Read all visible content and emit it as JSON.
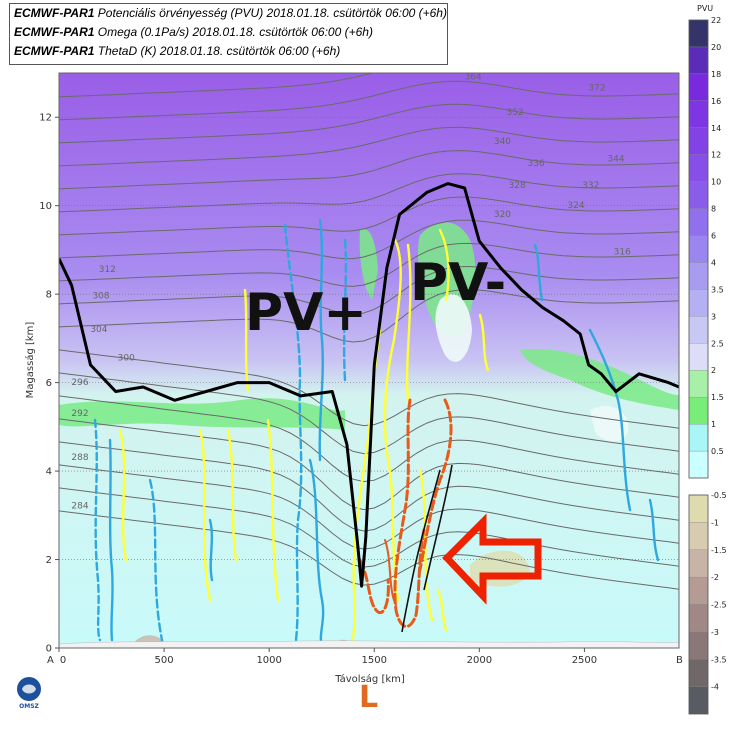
{
  "legend": [
    {
      "model": "ECMWF-PAR1",
      "rest": "Potenciális örvényesség (PVU) 2018.01.18. csütörtök 06:00 (+6h)"
    },
    {
      "model": "ECMWF-PAR1",
      "rest": "Omega (0.1Pa/s) 2018.01.18. csütörtök 06:00 (+6h)"
    },
    {
      "model": "ECMWF-PAR1",
      "rest": "ThetaD (K) 2018.01.18. csütörtök 06:00 (+6h)"
    }
  ],
  "chart_data": {
    "type": "cross-section",
    "xlabel": "Távolság [km]",
    "ylabel": "Magasság [km]",
    "xlim": [
      0,
      2950
    ],
    "ylim": [
      0,
      13
    ],
    "x_ticks": [
      0,
      500,
      1000,
      1500,
      2000,
      2500
    ],
    "y_ticks": [
      0,
      2,
      4,
      6,
      8,
      10,
      12
    ],
    "endpoint_labels": {
      "start": "A",
      "end": "B"
    },
    "grid": "horizontal dotted",
    "pv_colorbar": {
      "unit": "PVU",
      "levels": [
        0.5,
        1,
        1.5,
        2,
        2.5,
        3,
        3.5,
        4,
        6,
        8,
        10,
        12,
        14,
        16,
        18,
        20,
        22
      ],
      "colors": [
        "#ccffff",
        "#aaf5f5",
        "#78ee78",
        "#a8f0a8",
        "#ddddf8",
        "#c8c8f5",
        "#b5b0f2",
        "#a89cf0",
        "#9a86ee",
        "#9070ec",
        "#8a5cea",
        "#8650e8",
        "#8242e6",
        "#7e36e2",
        "#7a2ade",
        "#5a2cb8",
        "#34346a"
      ]
    },
    "omega_colorbar": {
      "levels": [
        -0.5,
        -1,
        -1.5,
        -2,
        -2.5,
        -3,
        -3.5,
        -4
      ],
      "colors": [
        "#dedcae",
        "#d8ccb0",
        "#c8b4a6",
        "#b49c94",
        "#a08886",
        "#8a7878",
        "#706868",
        "#585c62"
      ]
    },
    "thetad_contours_K": [
      284,
      288,
      292,
      296,
      300,
      304,
      308,
      312,
      316,
      320,
      324,
      328,
      332,
      336,
      340,
      344,
      352,
      364,
      372
    ],
    "thetad_contour_labels": [
      {
        "label": "284",
        "x": 100,
        "y": 3.15
      },
      {
        "label": "288",
        "x": 100,
        "y": 4.25
      },
      {
        "label": "292",
        "x": 100,
        "y": 5.25
      },
      {
        "label": "296",
        "x": 100,
        "y": 5.95
      },
      {
        "label": "300",
        "x": 320,
        "y": 6.5
      },
      {
        "label": "304",
        "x": 190,
        "y": 7.15
      },
      {
        "label": "308",
        "x": 200,
        "y": 7.9
      },
      {
        "label": "312",
        "x": 230,
        "y": 8.5
      },
      {
        "label": "316",
        "x": 2680,
        "y": 8.9
      },
      {
        "label": "320",
        "x": 2110,
        "y": 9.75
      },
      {
        "label": "324",
        "x": 2460,
        "y": 9.95
      },
      {
        "label": "328",
        "x": 2180,
        "y": 10.4
      },
      {
        "label": "332",
        "x": 2530,
        "y": 10.4
      },
      {
        "label": "336",
        "x": 2270,
        "y": 10.9
      },
      {
        "label": "340",
        "x": 2110,
        "y": 11.4
      },
      {
        "label": "344",
        "x": 2650,
        "y": 11.0
      },
      {
        "label": "352",
        "x": 2170,
        "y": 12.05
      },
      {
        "label": "364",
        "x": 1970,
        "y": 12.85
      },
      {
        "label": "372",
        "x": 2560,
        "y": 12.6
      }
    ],
    "dynamic_tropopause_2pvu": [
      [
        0,
        8.8
      ],
      [
        60,
        8.2
      ],
      [
        150,
        6.4
      ],
      [
        270,
        5.8
      ],
      [
        400,
        5.9
      ],
      [
        550,
        5.6
      ],
      [
        700,
        5.8
      ],
      [
        850,
        6.0
      ],
      [
        1000,
        6.0
      ],
      [
        1150,
        5.7
      ],
      [
        1300,
        5.8
      ],
      [
        1370,
        4.6
      ],
      [
        1420,
        2.4
      ],
      [
        1440,
        1.4
      ],
      [
        1460,
        2.5
      ],
      [
        1500,
        6.4
      ],
      [
        1560,
        8.6
      ],
      [
        1620,
        9.8
      ],
      [
        1750,
        10.3
      ],
      [
        1850,
        10.5
      ],
      [
        1930,
        10.4
      ],
      [
        2000,
        9.2
      ],
      [
        2100,
        8.6
      ],
      [
        2200,
        8.1
      ],
      [
        2300,
        7.7
      ],
      [
        2400,
        7.4
      ],
      [
        2480,
        7.1
      ],
      [
        2520,
        6.4
      ],
      [
        2580,
        6.2
      ],
      [
        2650,
        5.8
      ],
      [
        2760,
        6.2
      ],
      [
        2900,
        6.0
      ],
      [
        2950,
        5.9
      ]
    ],
    "annotations": [
      "PV+",
      "PV-",
      "L"
    ],
    "logo": "OMSZ"
  }
}
